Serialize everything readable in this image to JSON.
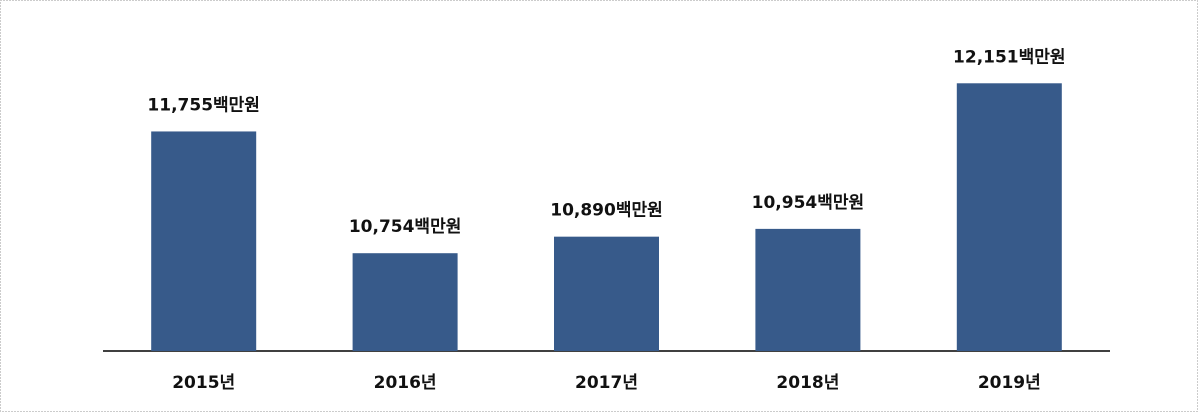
{
  "chart_data": {
    "type": "bar",
    "categories": [
      "2015년",
      "2016년",
      "2017년",
      "2018년",
      "2019년"
    ],
    "values": [
      11755,
      10754,
      10890,
      10954,
      12151
    ],
    "value_labels": [
      "11,755백만원",
      "10,754백만원",
      "10,890백만원",
      "10,954백만원",
      "12,151백만원"
    ],
    "color": "#375a8a",
    "ylim": [
      9950,
      12400
    ]
  }
}
